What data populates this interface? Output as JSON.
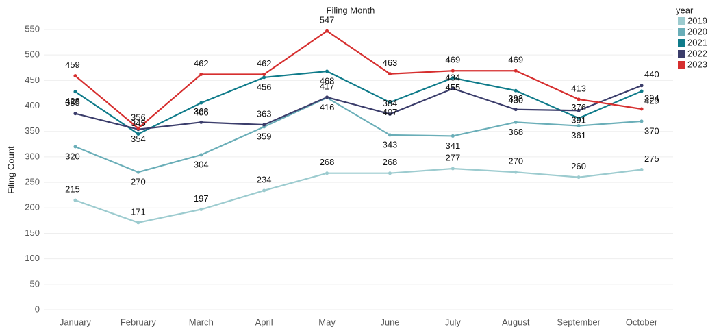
{
  "chart_data": {
    "type": "line",
    "x_label": "Filing Month",
    "y_label": "Filing Count",
    "legend_title": "year",
    "categories": [
      "January",
      "February",
      "March",
      "April",
      "May",
      "June",
      "July",
      "August",
      "September",
      "October"
    ],
    "series": [
      {
        "name": "2019",
        "color": "#9ccbcf",
        "values": [
          215,
          171,
          197,
          234,
          268,
          268,
          277,
          270,
          260,
          275
        ]
      },
      {
        "name": "2020",
        "color": "#6aaeb8",
        "values": [
          320,
          270,
          304,
          359,
          416,
          343,
          341,
          368,
          361,
          370
        ]
      },
      {
        "name": "2021",
        "color": "#0f7b8a",
        "values": [
          428,
          345,
          406,
          456,
          468,
          407,
          455,
          430,
          376,
          429
        ]
      },
      {
        "name": "2022",
        "color": "#3b3d6b",
        "values": [
          385,
          354,
          368,
          363,
          417,
          384,
          434,
          393,
          391,
          440
        ]
      },
      {
        "name": "2023",
        "color": "#d62f2f",
        "values": [
          459,
          356,
          462,
          462,
          547,
          463,
          469,
          469,
          413,
          394
        ]
      }
    ],
    "ylim": [
      0,
      570
    ],
    "yticks": [
      0,
      50,
      100,
      150,
      200,
      250,
      300,
      350,
      400,
      450,
      500,
      550
    ],
    "grid": true,
    "legend": "right"
  }
}
